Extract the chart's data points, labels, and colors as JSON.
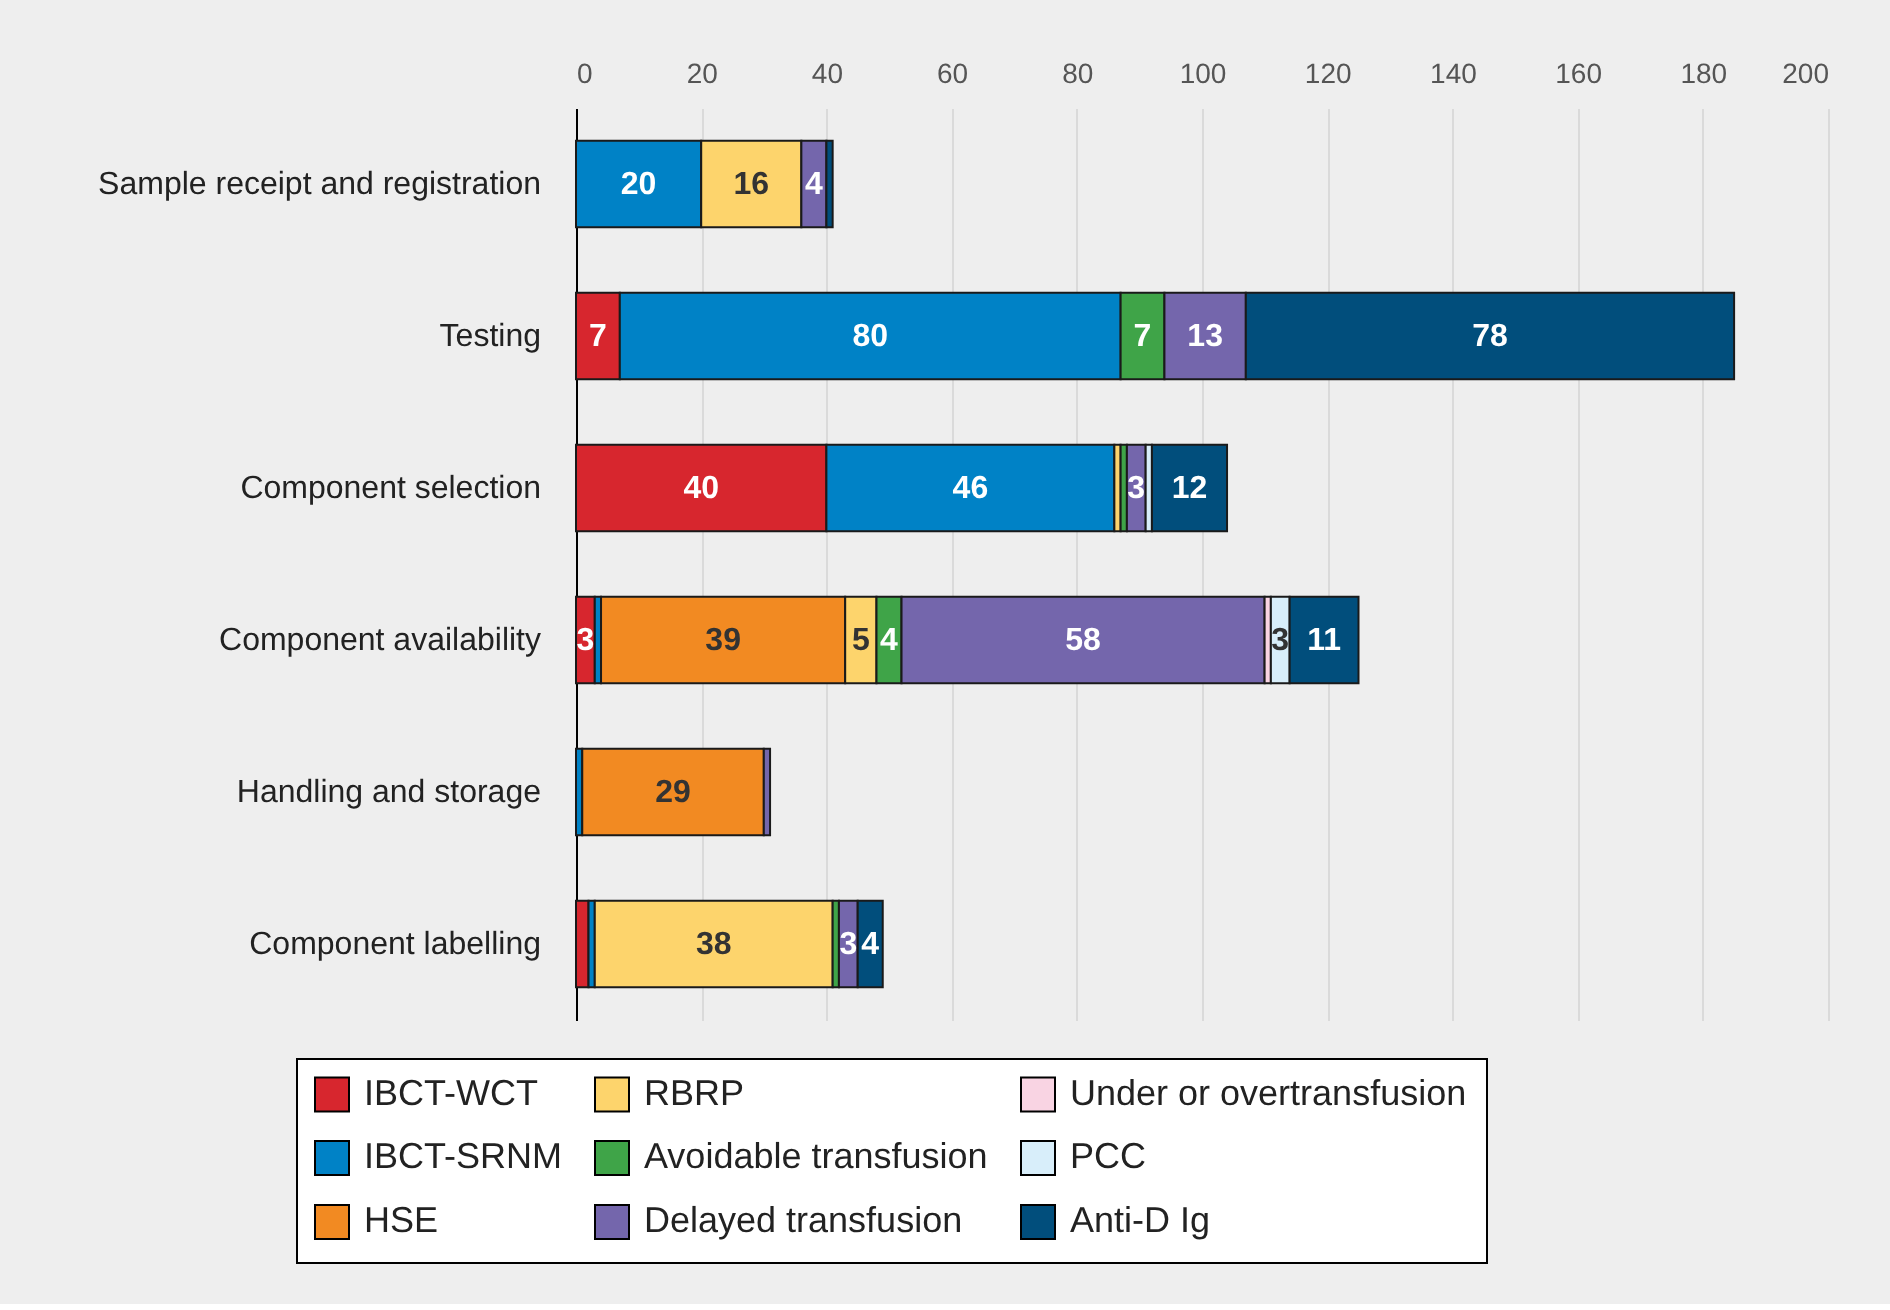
{
  "chart_data": {
    "type": "bar",
    "orientation": "horizontal",
    "stacked": true,
    "categories": [
      "Sample receipt and registration",
      "Testing",
      "Component selection",
      "Component availability",
      "Handling and storage",
      "Component labelling"
    ],
    "xlim": [
      0,
      200
    ],
    "xticks": [
      0,
      20,
      40,
      60,
      80,
      100,
      120,
      140,
      160,
      180,
      200
    ],
    "grid": "x",
    "legend": "bottom",
    "series": [
      {
        "name": "IBCT-WCT",
        "color": "#d7262e",
        "values": [
          null,
          7,
          40,
          3,
          null,
          2
        ],
        "value_labels": [
          null,
          "7",
          "40",
          "3",
          null,
          null
        ]
      },
      {
        "name": "IBCT-SRNM",
        "color": "#0082c6",
        "values": [
          20,
          80,
          46,
          1,
          1,
          1
        ],
        "value_labels": [
          "20",
          "80",
          "46",
          null,
          null,
          null
        ]
      },
      {
        "name": "HSE",
        "color": "#f28a22",
        "values": [
          null,
          null,
          null,
          39,
          29,
          null
        ],
        "value_labels": [
          null,
          null,
          null,
          "39",
          "29",
          null
        ]
      },
      {
        "name": "RBRP",
        "color": "#fdd46c",
        "values": [
          16,
          null,
          1,
          5,
          null,
          38
        ],
        "value_labels": [
          "16",
          null,
          null,
          "5",
          null,
          "38"
        ]
      },
      {
        "name": "Avoidable transfusion",
        "color": "#3fa448",
        "values": [
          null,
          7,
          1,
          4,
          null,
          1
        ],
        "value_labels": [
          null,
          "7",
          null,
          "4",
          null,
          null
        ]
      },
      {
        "name": "Delayed transfusion",
        "color": "#7466ac",
        "values": [
          4,
          13,
          3,
          58,
          1,
          3
        ],
        "value_labels": [
          "4",
          "13",
          "3",
          "58",
          null,
          "3"
        ]
      },
      {
        "name": "Under or overtransfusion",
        "color": "#f9d4e3",
        "values": [
          null,
          null,
          null,
          1,
          null,
          null
        ],
        "value_labels": [
          null,
          null,
          null,
          null,
          null,
          null
        ]
      },
      {
        "name": "PCC",
        "color": "#d8eefa",
        "values": [
          null,
          null,
          1,
          3,
          null,
          null
        ],
        "value_labels": [
          null,
          null,
          null,
          "3",
          null,
          null
        ]
      },
      {
        "name": "Anti-D Ig",
        "color": "#014e7c",
        "values": [
          1,
          78,
          12,
          11,
          null,
          4
        ],
        "value_labels": [
          null,
          "78",
          "12",
          "11",
          null,
          "4"
        ]
      }
    ]
  }
}
